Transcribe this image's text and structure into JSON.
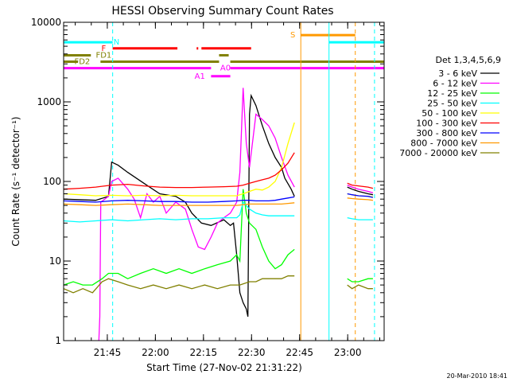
{
  "chart_data": {
    "type": "line",
    "title": "HESSI Observing Summary Count Rates",
    "xlabel": "Start Time (27-Nov-02 21:31:22)",
    "ylabel": "Count Rate (s⁻¹ detector⁻¹)",
    "yscale": "log",
    "ylim": [
      1,
      10000
    ],
    "xlim_minutes": [
      0,
      100
    ],
    "x_ticks": [
      {
        "m": 13.63,
        "label": "21:45"
      },
      {
        "m": 28.63,
        "label": "22:00"
      },
      {
        "m": 43.63,
        "label": "22:15"
      },
      {
        "m": 58.63,
        "label": "22:30"
      },
      {
        "m": 73.63,
        "label": "22:45"
      },
      {
        "m": 88.63,
        "label": "23:00"
      }
    ],
    "y_ticks": [
      {
        "v": 1,
        "label": "1"
      },
      {
        "v": 10,
        "label": "10"
      },
      {
        "v": 100,
        "label": "100"
      },
      {
        "v": 1000,
        "label": "1000"
      },
      {
        "v": 10000,
        "label": "10000"
      }
    ],
    "legend_title": "Det 1,3,4,5,6,9",
    "series": [
      {
        "name": "3 - 6 keV",
        "color": "#000000",
        "points": [
          [
            0,
            60
          ],
          [
            10,
            58
          ],
          [
            14,
            65
          ],
          [
            15,
            175
          ],
          [
            17,
            160
          ],
          [
            20,
            130
          ],
          [
            25,
            95
          ],
          [
            30,
            70
          ],
          [
            35,
            65
          ],
          [
            38,
            55
          ],
          [
            40,
            40
          ],
          [
            43,
            30
          ],
          [
            46,
            28
          ],
          [
            50,
            33
          ],
          [
            52,
            28
          ],
          [
            53,
            30
          ],
          [
            54,
            12
          ],
          [
            55,
            4
          ],
          [
            56,
            3
          ],
          [
            57,
            2.5
          ],
          [
            57.5,
            2
          ],
          [
            58,
            700
          ],
          [
            58.5,
            1200
          ],
          [
            60,
            900
          ],
          [
            62,
            500
          ],
          [
            64,
            300
          ],
          [
            66,
            200
          ],
          [
            68,
            150
          ],
          [
            69,
            110
          ],
          [
            71,
            80
          ],
          [
            72,
            65
          ]
        ],
        "points2": [
          [
            88.5,
            85
          ],
          [
            90,
            80
          ],
          [
            92,
            75
          ],
          [
            95,
            70
          ],
          [
            96.5,
            68
          ]
        ]
      },
      {
        "name": "6 - 12 keV",
        "color": "#ff00ff",
        "points": [
          [
            11,
            1
          ],
          [
            11.3,
            2
          ],
          [
            11.6,
            55
          ],
          [
            14,
            65
          ],
          [
            15,
            100
          ],
          [
            17,
            110
          ],
          [
            20,
            80
          ],
          [
            22,
            60
          ],
          [
            24,
            35
          ],
          [
            26,
            70
          ],
          [
            28,
            55
          ],
          [
            30,
            65
          ],
          [
            32,
            40
          ],
          [
            35,
            55
          ],
          [
            38,
            45
          ],
          [
            40,
            25
          ],
          [
            42,
            15
          ],
          [
            44,
            14
          ],
          [
            46,
            20
          ],
          [
            48,
            30
          ],
          [
            50,
            35
          ],
          [
            52,
            40
          ],
          [
            54,
            55
          ],
          [
            55,
            130
          ],
          [
            56,
            1500
          ],
          [
            57,
            300
          ],
          [
            58,
            150
          ],
          [
            60,
            700
          ],
          [
            62,
            600
          ],
          [
            64,
            500
          ],
          [
            66,
            350
          ],
          [
            68,
            200
          ],
          [
            70,
            120
          ],
          [
            72,
            85
          ]
        ],
        "points2": [
          [
            88.5,
            90
          ],
          [
            90,
            85
          ],
          [
            92,
            80
          ],
          [
            95,
            75
          ],
          [
            96.5,
            72
          ]
        ]
      },
      {
        "name": "12 - 25 keV",
        "color": "#00ff00",
        "points": [
          [
            0,
            5
          ],
          [
            3,
            5.5
          ],
          [
            6,
            5
          ],
          [
            9,
            5
          ],
          [
            12,
            6
          ],
          [
            14,
            7
          ],
          [
            17,
            7
          ],
          [
            20,
            6
          ],
          [
            24,
            7
          ],
          [
            28,
            8
          ],
          [
            32,
            7
          ],
          [
            36,
            8
          ],
          [
            40,
            7
          ],
          [
            44,
            8
          ],
          [
            48,
            9
          ],
          [
            52,
            10
          ],
          [
            54,
            12
          ],
          [
            55,
            10
          ],
          [
            56,
            80
          ],
          [
            57,
            40
          ],
          [
            58,
            30
          ],
          [
            60,
            25
          ],
          [
            62,
            15
          ],
          [
            64,
            10
          ],
          [
            66,
            8
          ],
          [
            68,
            9
          ],
          [
            70,
            12
          ],
          [
            72,
            14
          ]
        ],
        "points2": [
          [
            88.5,
            6
          ],
          [
            90,
            5.5
          ],
          [
            92,
            5.5
          ],
          [
            95,
            6
          ],
          [
            96.5,
            6
          ]
        ]
      },
      {
        "name": "25 - 50 keV",
        "color": "#00ffff",
        "points": [
          [
            0,
            32
          ],
          [
            5,
            31
          ],
          [
            10,
            32
          ],
          [
            15,
            33
          ],
          [
            20,
            32
          ],
          [
            25,
            33
          ],
          [
            30,
            34
          ],
          [
            35,
            33
          ],
          [
            40,
            34
          ],
          [
            45,
            34
          ],
          [
            50,
            35
          ],
          [
            54,
            35
          ],
          [
            55,
            38
          ],
          [
            56,
            55
          ],
          [
            58,
            45
          ],
          [
            60,
            40
          ],
          [
            62,
            38
          ],
          [
            64,
            37
          ],
          [
            66,
            37
          ],
          [
            68,
            37
          ],
          [
            70,
            37
          ],
          [
            72,
            37
          ]
        ],
        "points2": [
          [
            88.5,
            35
          ],
          [
            90,
            34
          ],
          [
            92,
            33
          ],
          [
            95,
            33
          ],
          [
            96.5,
            33
          ]
        ]
      },
      {
        "name": "50 - 100 keV",
        "color": "#ffff00",
        "points": [
          [
            0,
            70
          ],
          [
            5,
            68
          ],
          [
            10,
            66
          ],
          [
            15,
            67
          ],
          [
            20,
            66
          ],
          [
            25,
            67
          ],
          [
            30,
            66
          ],
          [
            35,
            67
          ],
          [
            40,
            66
          ],
          [
            45,
            66
          ],
          [
            50,
            66
          ],
          [
            54,
            66
          ],
          [
            56,
            70
          ],
          [
            58,
            75
          ],
          [
            60,
            80
          ],
          [
            62,
            78
          ],
          [
            64,
            85
          ],
          [
            66,
            100
          ],
          [
            68,
            150
          ],
          [
            70,
            300
          ],
          [
            72,
            550
          ]
        ],
        "points2": [
          [
            88.5,
            70
          ],
          [
            90,
            68
          ],
          [
            92,
            66
          ],
          [
            95,
            65
          ],
          [
            96.5,
            64
          ]
        ]
      },
      {
        "name": "100 - 300 keV",
        "color": "#ff0000",
        "points": [
          [
            0,
            80
          ],
          [
            5,
            82
          ],
          [
            10,
            85
          ],
          [
            15,
            90
          ],
          [
            20,
            92
          ],
          [
            25,
            88
          ],
          [
            30,
            85
          ],
          [
            35,
            84
          ],
          [
            40,
            84
          ],
          [
            45,
            85
          ],
          [
            50,
            86
          ],
          [
            54,
            87
          ],
          [
            56,
            90
          ],
          [
            58,
            95
          ],
          [
            60,
            100
          ],
          [
            62,
            105
          ],
          [
            64,
            110
          ],
          [
            66,
            120
          ],
          [
            68,
            140
          ],
          [
            70,
            170
          ],
          [
            72,
            230
          ]
        ],
        "points2": [
          [
            88.5,
            95
          ],
          [
            90,
            90
          ],
          [
            92,
            88
          ],
          [
            95,
            85
          ],
          [
            96.5,
            82
          ]
        ]
      },
      {
        "name": "300 - 800 keV",
        "color": "#0000ff",
        "points": [
          [
            0,
            57
          ],
          [
            5,
            56
          ],
          [
            10,
            55
          ],
          [
            15,
            57
          ],
          [
            20,
            58
          ],
          [
            25,
            57
          ],
          [
            30,
            56
          ],
          [
            35,
            56
          ],
          [
            40,
            55
          ],
          [
            45,
            55
          ],
          [
            50,
            56
          ],
          [
            54,
            57
          ],
          [
            56,
            58
          ],
          [
            58,
            58
          ],
          [
            60,
            57
          ],
          [
            62,
            57
          ],
          [
            64,
            57
          ],
          [
            66,
            58
          ],
          [
            68,
            60
          ],
          [
            70,
            62
          ],
          [
            72,
            64
          ]
        ],
        "points2": [
          [
            88.5,
            70
          ],
          [
            90,
            68
          ],
          [
            92,
            66
          ],
          [
            95,
            65
          ],
          [
            96.5,
            63
          ]
        ]
      },
      {
        "name": "800 - 7000 keV",
        "color": "#ff9900",
        "points": [
          [
            0,
            52
          ],
          [
            5,
            51
          ],
          [
            10,
            50
          ],
          [
            15,
            51
          ],
          [
            20,
            52
          ],
          [
            25,
            51
          ],
          [
            30,
            50
          ],
          [
            35,
            50
          ],
          [
            40,
            50
          ],
          [
            45,
            50
          ],
          [
            50,
            50
          ],
          [
            54,
            50
          ],
          [
            56,
            51
          ],
          [
            58,
            52
          ],
          [
            60,
            52
          ],
          [
            62,
            52
          ],
          [
            64,
            52
          ],
          [
            66,
            52
          ],
          [
            68,
            52
          ],
          [
            70,
            53
          ],
          [
            72,
            54
          ]
        ],
        "points2": [
          [
            88.5,
            62
          ],
          [
            90,
            61
          ],
          [
            92,
            60
          ],
          [
            95,
            59
          ],
          [
            96.5,
            58
          ]
        ]
      },
      {
        "name": "7000 - 20000 keV",
        "color": "#808000",
        "points": [
          [
            0,
            4.5
          ],
          [
            3,
            4
          ],
          [
            6,
            4.5
          ],
          [
            9,
            4
          ],
          [
            12,
            5.5
          ],
          [
            14,
            6
          ],
          [
            17,
            5.5
          ],
          [
            20,
            5
          ],
          [
            24,
            4.5
          ],
          [
            28,
            5
          ],
          [
            32,
            4.5
          ],
          [
            36,
            5
          ],
          [
            40,
            4.5
          ],
          [
            44,
            5
          ],
          [
            48,
            4.5
          ],
          [
            52,
            5
          ],
          [
            55,
            5
          ],
          [
            58,
            5.5
          ],
          [
            60,
            5.5
          ],
          [
            62,
            6
          ],
          [
            64,
            6
          ],
          [
            66,
            6
          ],
          [
            68,
            6
          ],
          [
            70,
            6.5
          ],
          [
            72,
            6.5
          ]
        ],
        "points2": [
          [
            88.5,
            5
          ],
          [
            90,
            4.5
          ],
          [
            92,
            5
          ],
          [
            95,
            4.5
          ],
          [
            96.5,
            4.5
          ]
        ]
      }
    ],
    "vertical_lines": [
      {
        "m": 0,
        "color": "#00ffff",
        "style": "solid"
      },
      {
        "m": 15.3,
        "color": "#00ffff",
        "style": "dashed"
      },
      {
        "m": 74,
        "color": "#ff9900",
        "style": "solid"
      },
      {
        "m": 82.8,
        "color": "#00ffff",
        "style": "solid"
      },
      {
        "m": 91,
        "color": "#ff9900",
        "style": "dashed"
      },
      {
        "m": 97,
        "color": "#00ffff",
        "style": "dashed"
      }
    ],
    "flags": [
      {
        "label": "N",
        "color": "#00ffff",
        "y": 5600,
        "segments": [
          [
            0,
            15.3
          ],
          [
            82.8,
            100
          ]
        ],
        "label_m": 16.5
      },
      {
        "label": "S",
        "color": "#ff9900",
        "y": 6900,
        "segments": [
          [
            74,
            91
          ]
        ],
        "label_m": 71.5
      },
      {
        "label": "F",
        "color": "#ff0000",
        "y": 4700,
        "segments": [
          [
            15.3,
            35.5
          ],
          [
            41.5,
            42
          ],
          [
            43,
            58.5
          ]
        ],
        "label_m": 12.5
      },
      {
        "label": "FD1",
        "color": "#808000",
        "y": 3850,
        "segments": [
          [
            0,
            8.5
          ],
          [
            48.5,
            51.5
          ]
        ],
        "label_m": 12.5
      },
      {
        "label": "FD2",
        "color": "#808000",
        "y": 3200,
        "segments": [
          [
            0,
            4.5
          ],
          [
            11.5,
            48.5
          ],
          [
            52,
            100
          ]
        ],
        "label_m": 5.8
      },
      {
        "label": "A0",
        "color": "#ff00ff",
        "y": 2650,
        "segments": [
          [
            0,
            46
          ],
          [
            52,
            100
          ]
        ],
        "label_m": 50.5
      },
      {
        "label": "A1",
        "color": "#ff00ff",
        "y": 2100,
        "segments": [
          [
            46,
            52
          ]
        ],
        "label_m": 42.5
      }
    ],
    "timestamp": "20-Mar-2010 18:41"
  }
}
